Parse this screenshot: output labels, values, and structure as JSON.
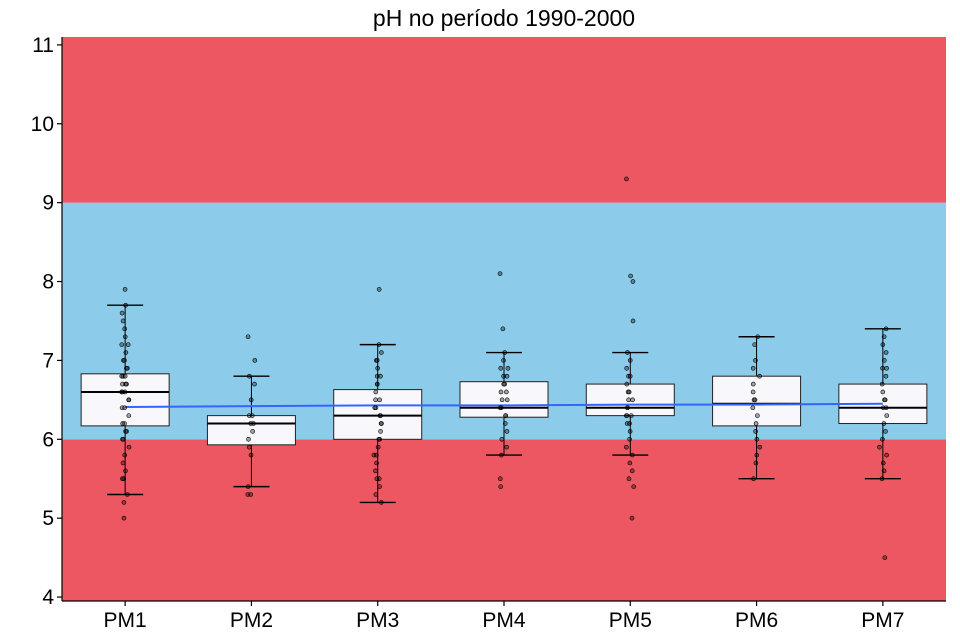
{
  "chart_data": {
    "type": "box",
    "title": "pH no período 1990-2000",
    "xlabel": "",
    "ylabel": "",
    "ylim": [
      3.95,
      11.1
    ],
    "yticks": [
      4,
      5,
      6,
      7,
      8,
      9,
      10,
      11
    ],
    "categories": [
      "PM1",
      "PM2",
      "PM3",
      "PM4",
      "PM5",
      "PM6",
      "PM7"
    ],
    "bands": [
      {
        "from": 3.95,
        "to": 6,
        "color": "#ec5762"
      },
      {
        "from": 6,
        "to": 9,
        "color": "#8ccbea"
      },
      {
        "from": 9,
        "to": 11.1,
        "color": "#ec5762"
      }
    ],
    "boxes": [
      {
        "category": "PM1",
        "min": 5.3,
        "q1": 6.17,
        "median": 6.6,
        "q3": 6.83,
        "max": 7.7
      },
      {
        "category": "PM2",
        "min": 5.4,
        "q1": 5.93,
        "median": 6.2,
        "q3": 6.3,
        "max": 6.8
      },
      {
        "category": "PM3",
        "min": 5.2,
        "q1": 6.0,
        "median": 6.3,
        "q3": 6.63,
        "max": 7.2
      },
      {
        "category": "PM4",
        "min": 5.8,
        "q1": 6.28,
        "median": 6.4,
        "q3": 6.73,
        "max": 7.1
      },
      {
        "category": "PM5",
        "min": 5.8,
        "q1": 6.3,
        "median": 6.4,
        "q3": 6.7,
        "max": 7.1
      },
      {
        "category": "PM6",
        "min": 5.5,
        "q1": 6.17,
        "median": 6.45,
        "q3": 6.8,
        "max": 7.3
      },
      {
        "category": "PM7",
        "min": 5.5,
        "q1": 6.2,
        "median": 6.4,
        "q3": 6.7,
        "max": 7.4
      }
    ],
    "points": [
      [
        7.9,
        7.7,
        7.6,
        7.5,
        7.4,
        7.3,
        7.2,
        7.2,
        7.1,
        7.0,
        7.0,
        6.9,
        6.9,
        6.8,
        6.8,
        6.8,
        6.7,
        6.7,
        6.7,
        6.6,
        6.6,
        6.6,
        6.5,
        6.5,
        6.4,
        6.4,
        6.3,
        6.2,
        6.2,
        6.1,
        6.1,
        6.0,
        6.0,
        5.9,
        5.8,
        5.7,
        5.6,
        5.5,
        5.5,
        5.3,
        5.2,
        5.0
      ],
      [
        7.3,
        7.0,
        6.8,
        6.7,
        6.5,
        6.3,
        6.3,
        6.2,
        6.2,
        6.1,
        6.0,
        5.9,
        5.8,
        5.4,
        5.3,
        5.3
      ],
      [
        7.9,
        7.2,
        7.1,
        7.0,
        7.0,
        6.9,
        6.8,
        6.8,
        6.7,
        6.7,
        6.6,
        6.5,
        6.5,
        6.4,
        6.4,
        6.3,
        6.3,
        6.2,
        6.2,
        6.1,
        6.0,
        6.0,
        5.9,
        5.8,
        5.8,
        5.7,
        5.6,
        5.5,
        5.5,
        5.4,
        5.3,
        5.2
      ],
      [
        8.1,
        7.4,
        7.1,
        7.0,
        6.9,
        6.9,
        6.8,
        6.8,
        6.7,
        6.7,
        6.6,
        6.6,
        6.5,
        6.5,
        6.4,
        6.4,
        6.3,
        6.3,
        6.2,
        6.1,
        6.0,
        5.9,
        5.8,
        5.5,
        5.4
      ],
      [
        9.3,
        8.07,
        8.0,
        7.5,
        7.1,
        7.0,
        6.9,
        6.8,
        6.8,
        6.7,
        6.6,
        6.6,
        6.5,
        6.5,
        6.4,
        6.4,
        6.3,
        6.3,
        6.3,
        6.2,
        6.2,
        6.1,
        6.0,
        5.9,
        5.8,
        5.7,
        5.6,
        5.5,
        5.4,
        5.0
      ],
      [
        7.3,
        7.2,
        7.0,
        6.9,
        6.8,
        6.7,
        6.6,
        6.5,
        6.5,
        6.4,
        6.3,
        6.2,
        6.1,
        6.0,
        5.9,
        5.8,
        5.7,
        5.5
      ],
      [
        7.4,
        7.3,
        7.2,
        7.1,
        7.0,
        6.9,
        6.9,
        6.8,
        6.7,
        6.6,
        6.5,
        6.5,
        6.4,
        6.4,
        6.3,
        6.2,
        6.1,
        6.0,
        5.9,
        5.8,
        5.7,
        5.6,
        5.5,
        4.5
      ]
    ],
    "trend": {
      "color": "#3366ff",
      "values": [
        6.41,
        6.42,
        6.43,
        6.43,
        6.44,
        6.44,
        6.45
      ]
    },
    "grid": false,
    "legend": "none"
  }
}
